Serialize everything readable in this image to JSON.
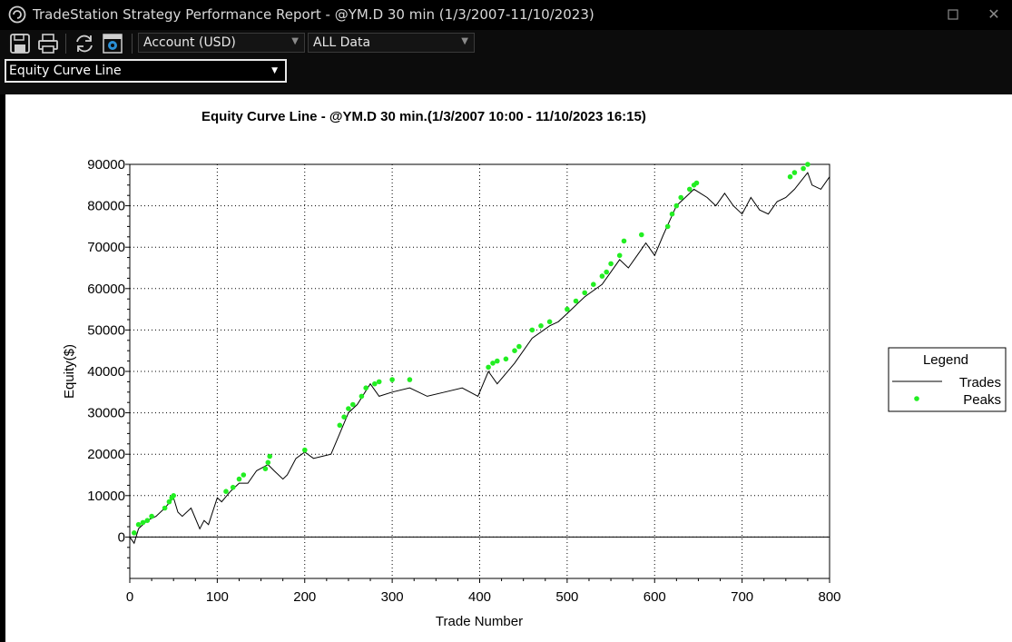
{
  "window": {
    "title": "TradeStation Strategy Performance Report - @YM.D 30 min (1/3/2007-11/10/2023)",
    "icons": {
      "app": "tradestation-logo-icon",
      "maximize": "maximize-icon",
      "close": "close-icon"
    },
    "close_glyph": "✕"
  },
  "toolbar": {
    "icons": [
      "save-icon",
      "print-icon",
      "refresh-icon",
      "settings-icon"
    ],
    "account_select": "Account (USD)",
    "data_select": "ALL Data"
  },
  "view_select": "Equity Curve Line",
  "chart_data": {
    "type": "line",
    "title": "Equity Curve Line - @YM.D 30 min.(1/3/2007 10:00 - 11/10/2023 16:15)",
    "xlabel": "Trade Number",
    "ylabel": "Equity($)",
    "xlim": [
      0,
      800
    ],
    "ylim": [
      -10000,
      90000
    ],
    "x_ticks": [
      "0",
      "100",
      "200",
      "300",
      "400",
      "500",
      "600",
      "700",
      "800"
    ],
    "y_ticks": [
      "90000",
      "80000",
      "70000",
      "60000",
      "50000",
      "40000",
      "30000",
      "20000",
      "10000",
      "0"
    ],
    "grid": true,
    "legend": {
      "title": "Legend",
      "position": "right",
      "entries": [
        "Trades",
        "Peaks"
      ]
    },
    "colors": {
      "trades": "#000000",
      "peaks": "#22ee22"
    },
    "series": [
      {
        "name": "Trades",
        "x": [
          0,
          5,
          10,
          20,
          30,
          40,
          50,
          55,
          60,
          70,
          80,
          85,
          90,
          100,
          105,
          115,
          125,
          135,
          145,
          158,
          165,
          175,
          180,
          190,
          200,
          210,
          220,
          230,
          240,
          250,
          260,
          275,
          285,
          300,
          320,
          340,
          360,
          380,
          398,
          410,
          420,
          440,
          460,
          480,
          490,
          500,
          520,
          540,
          560,
          570,
          580,
          590,
          600,
          610,
          625,
          645,
          660,
          670,
          680,
          690,
          700,
          710,
          720,
          730,
          740,
          750,
          760,
          775,
          780,
          790,
          800
        ],
        "y": [
          0,
          -1500,
          2000,
          4000,
          5000,
          7000,
          9500,
          6000,
          5000,
          7000,
          2000,
          4000,
          3000,
          9500,
          8500,
          11000,
          13000,
          13000,
          16000,
          17500,
          16000,
          14000,
          15000,
          19000,
          20500,
          19000,
          19500,
          20000,
          25000,
          30000,
          32000,
          37000,
          34000,
          35000,
          36000,
          34000,
          35000,
          36000,
          34000,
          40000,
          37000,
          42000,
          48000,
          51000,
          52000,
          54000,
          58000,
          61000,
          67000,
          65000,
          68000,
          71000,
          68000,
          73000,
          80000,
          84000,
          82000,
          80000,
          83000,
          80000,
          78000,
          82000,
          79000,
          78000,
          81000,
          82000,
          84000,
          88000,
          85000,
          84000,
          87000
        ]
      },
      {
        "name": "Peaks",
        "x": [
          5,
          10,
          15,
          20,
          25,
          40,
          45,
          48,
          50,
          110,
          118,
          125,
          130,
          155,
          158,
          160,
          200,
          240,
          245,
          250,
          255,
          265,
          270,
          280,
          285,
          300,
          320,
          410,
          415,
          420,
          430,
          440,
          445,
          460,
          470,
          480,
          500,
          510,
          520,
          530,
          540,
          545,
          550,
          560,
          565,
          585,
          615,
          620,
          625,
          630,
          640,
          645,
          648,
          755,
          760,
          770,
          775
        ],
        "y": [
          1000,
          3000,
          3500,
          4000,
          5000,
          7000,
          8500,
          9500,
          10000,
          11000,
          12000,
          14000,
          15000,
          16500,
          18000,
          19500,
          21000,
          27000,
          29000,
          31000,
          32000,
          34000,
          36000,
          37000,
          37500,
          38000,
          38000,
          41000,
          42000,
          42500,
          43000,
          45000,
          46000,
          50000,
          51000,
          52000,
          55000,
          57000,
          59000,
          61000,
          63000,
          64000,
          66000,
          68000,
          71500,
          73000,
          75000,
          78000,
          80000,
          82000,
          84000,
          85000,
          85500,
          87000,
          88000,
          89000,
          90000
        ]
      }
    ]
  }
}
